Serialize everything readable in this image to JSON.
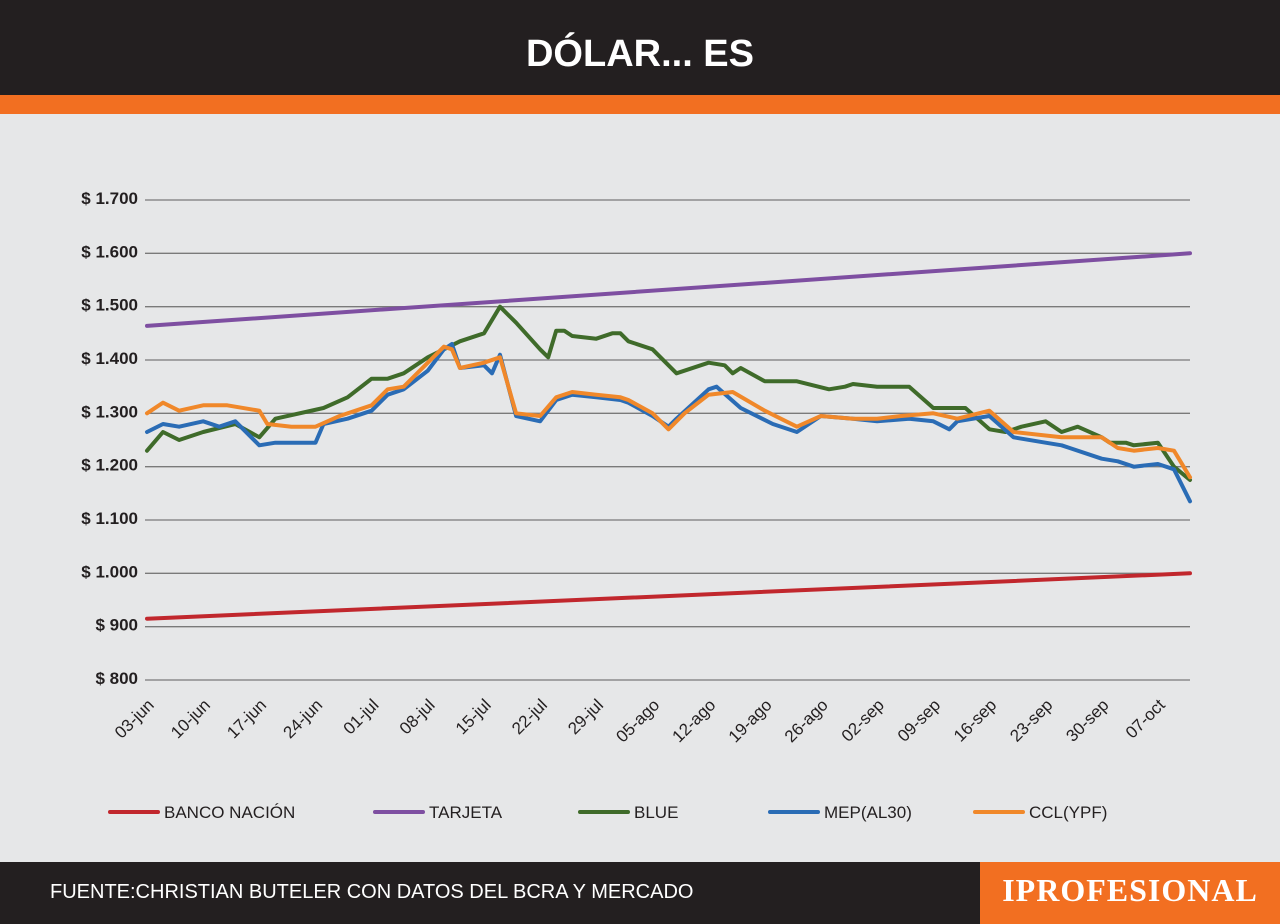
{
  "header": {
    "title": "DÓLAR... ES"
  },
  "footer": {
    "source": "FUENTE:CHRISTIAN BUTELER CON DATOS DEL BCRA Y MERCADO",
    "brand": "IPROFESIONAL"
  },
  "colors": {
    "header_bg": "#231f20",
    "accent": "#f26f21",
    "background": "#e6e7e8"
  },
  "chart_data": {
    "type": "line",
    "title": "",
    "xlabel": "",
    "ylabel": "",
    "ylim": [
      800,
      1700
    ],
    "y_ticks": [
      1700,
      1600,
      1500,
      1400,
      1300,
      1200,
      1100,
      1000,
      900,
      800
    ],
    "y_tick_labels": [
      "$ 1.700",
      "$ 1.600",
      "$ 1.500",
      "$ 1.400",
      "$ 1.300",
      "$ 1.200",
      "$ 1.100",
      "$ 1.000",
      "$ 900",
      "$ 800"
    ],
    "x_start": "2024-06-03",
    "x_end": "2024-10-11",
    "x_tick_labels": [
      "03-jun",
      "10-jun",
      "17-jun",
      "24-jun",
      "01-jul",
      "08-jul",
      "15-jul",
      "22-jul",
      "29-jul",
      "05-ago",
      "12-ago",
      "19-ago",
      "26-ago",
      "02-sep",
      "09-sep",
      "16-sep",
      "23-sep",
      "30-sep",
      "07-oct"
    ],
    "grid": true,
    "legend_position": "bottom",
    "series": [
      {
        "name": "BANCO NACIÓN",
        "color": "#c1272d",
        "points": [
          [
            "2024-06-03",
            915
          ],
          [
            "2024-10-11",
            1000
          ]
        ]
      },
      {
        "name": "TARJETA",
        "color": "#7e4fa1",
        "points": [
          [
            "2024-06-03",
            1464
          ],
          [
            "2024-10-11",
            1600
          ]
        ]
      },
      {
        "name": "BLUE",
        "color": "#3f6b2a",
        "points": [
          [
            "2024-06-03",
            1230
          ],
          [
            "2024-06-05",
            1265
          ],
          [
            "2024-06-07",
            1250
          ],
          [
            "2024-06-10",
            1265
          ],
          [
            "2024-06-14",
            1280
          ],
          [
            "2024-06-17",
            1255
          ],
          [
            "2024-06-19",
            1290
          ],
          [
            "2024-06-25",
            1310
          ],
          [
            "2024-06-28",
            1330
          ],
          [
            "2024-07-01",
            1365
          ],
          [
            "2024-07-03",
            1365
          ],
          [
            "2024-07-05",
            1375
          ],
          [
            "2024-07-08",
            1405
          ],
          [
            "2024-07-10",
            1420
          ],
          [
            "2024-07-12",
            1435
          ],
          [
            "2024-07-15",
            1450
          ],
          [
            "2024-07-17",
            1500
          ],
          [
            "2024-07-19",
            1470
          ],
          [
            "2024-07-22",
            1420
          ],
          [
            "2024-07-23",
            1405
          ],
          [
            "2024-07-24",
            1455
          ],
          [
            "2024-07-25",
            1455
          ],
          [
            "2024-07-26",
            1445
          ],
          [
            "2024-07-29",
            1440
          ],
          [
            "2024-07-31",
            1450
          ],
          [
            "2024-08-01",
            1450
          ],
          [
            "2024-08-02",
            1435
          ],
          [
            "2024-08-05",
            1420
          ],
          [
            "2024-08-07",
            1390
          ],
          [
            "2024-08-08",
            1375
          ],
          [
            "2024-08-12",
            1395
          ],
          [
            "2024-08-14",
            1390
          ],
          [
            "2024-08-15",
            1375
          ],
          [
            "2024-08-16",
            1385
          ],
          [
            "2024-08-19",
            1360
          ],
          [
            "2024-08-23",
            1360
          ],
          [
            "2024-08-27",
            1345
          ],
          [
            "2024-08-29",
            1350
          ],
          [
            "2024-08-30",
            1355
          ],
          [
            "2024-09-02",
            1350
          ],
          [
            "2024-09-06",
            1350
          ],
          [
            "2024-09-09",
            1310
          ],
          [
            "2024-09-13",
            1310
          ],
          [
            "2024-09-16",
            1270
          ],
          [
            "2024-09-18",
            1265
          ],
          [
            "2024-09-20",
            1275
          ],
          [
            "2024-09-23",
            1285
          ],
          [
            "2024-09-25",
            1265
          ],
          [
            "2024-09-27",
            1275
          ],
          [
            "2024-09-30",
            1255
          ],
          [
            "2024-10-01",
            1245
          ],
          [
            "2024-10-03",
            1245
          ],
          [
            "2024-10-04",
            1240
          ],
          [
            "2024-10-07",
            1245
          ],
          [
            "2024-10-09",
            1200
          ],
          [
            "2024-10-11",
            1175
          ]
        ]
      },
      {
        "name": "MEP(AL30)",
        "color": "#2a6cb5",
        "points": [
          [
            "2024-06-03",
            1265
          ],
          [
            "2024-06-05",
            1280
          ],
          [
            "2024-06-07",
            1275
          ],
          [
            "2024-06-10",
            1285
          ],
          [
            "2024-06-12",
            1275
          ],
          [
            "2024-06-14",
            1285
          ],
          [
            "2024-06-17",
            1240
          ],
          [
            "2024-06-19",
            1245
          ],
          [
            "2024-06-24",
            1245
          ],
          [
            "2024-06-25",
            1280
          ],
          [
            "2024-06-28",
            1290
          ],
          [
            "2024-07-01",
            1305
          ],
          [
            "2024-07-03",
            1335
          ],
          [
            "2024-07-05",
            1345
          ],
          [
            "2024-07-08",
            1380
          ],
          [
            "2024-07-10",
            1420
          ],
          [
            "2024-07-11",
            1430
          ],
          [
            "2024-07-12",
            1385
          ],
          [
            "2024-07-15",
            1390
          ],
          [
            "2024-07-16",
            1375
          ],
          [
            "2024-07-17",
            1410
          ],
          [
            "2024-07-19",
            1295
          ],
          [
            "2024-07-22",
            1285
          ],
          [
            "2024-07-24",
            1325
          ],
          [
            "2024-07-26",
            1335
          ],
          [
            "2024-07-29",
            1330
          ],
          [
            "2024-08-01",
            1325
          ],
          [
            "2024-08-02",
            1320
          ],
          [
            "2024-08-05",
            1295
          ],
          [
            "2024-08-07",
            1275
          ],
          [
            "2024-08-08",
            1290
          ],
          [
            "2024-08-12",
            1345
          ],
          [
            "2024-08-13",
            1350
          ],
          [
            "2024-08-16",
            1310
          ],
          [
            "2024-08-20",
            1280
          ],
          [
            "2024-08-23",
            1265
          ],
          [
            "2024-08-26",
            1295
          ],
          [
            "2024-08-30",
            1290
          ],
          [
            "2024-09-02",
            1285
          ],
          [
            "2024-09-06",
            1290
          ],
          [
            "2024-09-09",
            1285
          ],
          [
            "2024-09-11",
            1270
          ],
          [
            "2024-09-12",
            1285
          ],
          [
            "2024-09-16",
            1295
          ],
          [
            "2024-09-19",
            1255
          ],
          [
            "2024-09-23",
            1245
          ],
          [
            "2024-09-25",
            1240
          ],
          [
            "2024-09-26",
            1235
          ],
          [
            "2024-09-30",
            1215
          ],
          [
            "2024-10-02",
            1210
          ],
          [
            "2024-10-04",
            1200
          ],
          [
            "2024-10-07",
            1205
          ],
          [
            "2024-10-09",
            1195
          ],
          [
            "2024-10-11",
            1135
          ]
        ]
      },
      {
        "name": "CCL(YPF)",
        "color": "#f0882a",
        "points": [
          [
            "2024-06-03",
            1300
          ],
          [
            "2024-06-05",
            1320
          ],
          [
            "2024-06-07",
            1305
          ],
          [
            "2024-06-10",
            1315
          ],
          [
            "2024-06-13",
            1315
          ],
          [
            "2024-06-17",
            1305
          ],
          [
            "2024-06-18",
            1280
          ],
          [
            "2024-06-21",
            1275
          ],
          [
            "2024-06-24",
            1275
          ],
          [
            "2024-06-27",
            1295
          ],
          [
            "2024-07-01",
            1315
          ],
          [
            "2024-07-03",
            1345
          ],
          [
            "2024-07-05",
            1350
          ],
          [
            "2024-07-08",
            1395
          ],
          [
            "2024-07-10",
            1425
          ],
          [
            "2024-07-11",
            1420
          ],
          [
            "2024-07-12",
            1385
          ],
          [
            "2024-07-15",
            1395
          ],
          [
            "2024-07-17",
            1405
          ],
          [
            "2024-07-19",
            1300
          ],
          [
            "2024-07-22",
            1295
          ],
          [
            "2024-07-24",
            1330
          ],
          [
            "2024-07-26",
            1340
          ],
          [
            "2024-07-29",
            1335
          ],
          [
            "2024-08-01",
            1330
          ],
          [
            "2024-08-02",
            1325
          ],
          [
            "2024-08-05",
            1300
          ],
          [
            "2024-08-07",
            1270
          ],
          [
            "2024-08-09",
            1300
          ],
          [
            "2024-08-12",
            1335
          ],
          [
            "2024-08-15",
            1340
          ],
          [
            "2024-08-19",
            1305
          ],
          [
            "2024-08-21",
            1290
          ],
          [
            "2024-08-23",
            1275
          ],
          [
            "2024-08-26",
            1295
          ],
          [
            "2024-08-30",
            1290
          ],
          [
            "2024-09-02",
            1290
          ],
          [
            "2024-09-05",
            1295
          ],
          [
            "2024-09-09",
            1300
          ],
          [
            "2024-09-12",
            1290
          ],
          [
            "2024-09-16",
            1305
          ],
          [
            "2024-09-19",
            1265
          ],
          [
            "2024-09-25",
            1255
          ],
          [
            "2024-09-30",
            1255
          ],
          [
            "2024-10-02",
            1235
          ],
          [
            "2024-10-04",
            1230
          ],
          [
            "2024-10-07",
            1235
          ],
          [
            "2024-10-09",
            1230
          ],
          [
            "2024-10-11",
            1180
          ]
        ]
      }
    ]
  }
}
